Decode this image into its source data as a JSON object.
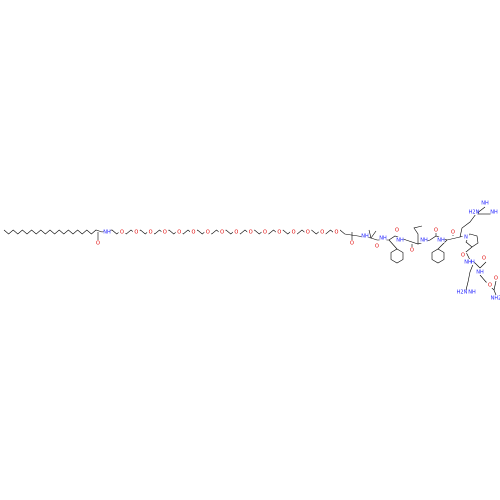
{
  "molecule": {
    "atom_labels": [
      "O",
      "NH",
      "O",
      "O",
      "O",
      "O",
      "O",
      "O",
      "O",
      "O",
      "O",
      "O",
      "O",
      "O",
      "O",
      "O",
      "O",
      "O",
      "O",
      "NH",
      "O",
      "NH",
      "O",
      "NH",
      "O",
      "NH",
      "O",
      "NH",
      "O",
      "N",
      "NH",
      "H2N",
      "NH",
      "O",
      "NH",
      "O",
      "NH",
      "O",
      "NH",
      "H2N",
      "NH",
      "O",
      "NH2"
    ]
  }
}
